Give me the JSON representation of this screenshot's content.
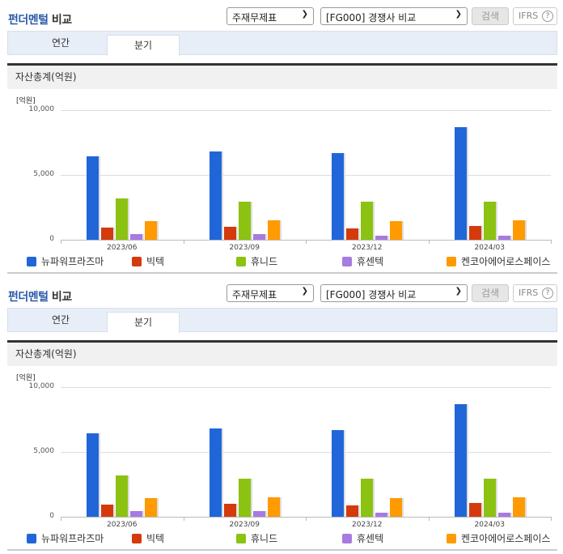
{
  "panels": [
    {
      "header": {
        "title_accent": "펀더멘털",
        "title_rest": " 비교",
        "select_statement": "주재무제표",
        "select_group": "[FG000] 경쟁사 비교",
        "search_label": "검색",
        "ifrs_label": "IFRS",
        "help_icon": "?"
      },
      "tabs": [
        {
          "label": "연간",
          "active": false
        },
        {
          "label": "분기",
          "active": true
        }
      ],
      "section_title": "자산총계(억원)",
      "chart_unit": "[억원]"
    },
    {
      "header": {
        "title_accent": "펀더멘털",
        "title_rest": " 비교",
        "select_statement": "주재무제표",
        "select_group": "[FG000] 경쟁사 비교",
        "search_label": "검색",
        "ifrs_label": "IFRS",
        "help_icon": "?"
      },
      "tabs": [
        {
          "label": "연간",
          "active": false
        },
        {
          "label": "분기",
          "active": true
        }
      ],
      "section_title": "자산총계(억원)",
      "chart_unit": "[억원]"
    }
  ],
  "chart_data": [
    {
      "type": "bar",
      "title": "자산총계(억원)",
      "xlabel": "",
      "ylabel": "[억원]",
      "ylim": [
        0,
        10000
      ],
      "yticks": [
        "0",
        "5,000",
        "10,000"
      ],
      "grid": true,
      "legend_position": "bottom",
      "categories": [
        "2023/06",
        "2023/09",
        "2023/12",
        "2024/03"
      ],
      "series": [
        {
          "name": "뉴파워프라즈마",
          "color": "#2166d9",
          "values": [
            6430,
            6800,
            6690,
            8690
          ]
        },
        {
          "name": "빅텍",
          "color": "#d43a0c",
          "values": [
            940,
            1000,
            880,
            1060
          ]
        },
        {
          "name": "휴니드",
          "color": "#8cc211",
          "values": [
            3190,
            2940,
            2940,
            2940
          ]
        },
        {
          "name": "휴센텍",
          "color": "#a77be0",
          "values": [
            440,
            440,
            310,
            310
          ]
        },
        {
          "name": "켄코아에어로스페이스",
          "color": "#ff9a00",
          "values": [
            1440,
            1500,
            1440,
            1500
          ]
        }
      ]
    },
    {
      "type": "bar",
      "title": "자산총계(억원)",
      "xlabel": "",
      "ylabel": "[억원]",
      "ylim": [
        0,
        10000
      ],
      "yticks": [
        "0",
        "5,000",
        "10,000"
      ],
      "grid": true,
      "legend_position": "bottom",
      "categories": [
        "2023/06",
        "2023/09",
        "2023/12",
        "2024/03"
      ],
      "series": [
        {
          "name": "뉴파워프라즈마",
          "color": "#2166d9",
          "values": [
            6430,
            6800,
            6690,
            8690
          ]
        },
        {
          "name": "빅텍",
          "color": "#d43a0c",
          "values": [
            940,
            1000,
            880,
            1060
          ]
        },
        {
          "name": "휴니드",
          "color": "#8cc211",
          "values": [
            3190,
            2940,
            2940,
            2940
          ]
        },
        {
          "name": "휴센텍",
          "color": "#a77be0",
          "values": [
            440,
            440,
            310,
            310
          ]
        },
        {
          "name": "켄코아에어로스페이스",
          "color": "#ff9a00",
          "values": [
            1440,
            1500,
            1440,
            1500
          ]
        }
      ]
    }
  ]
}
